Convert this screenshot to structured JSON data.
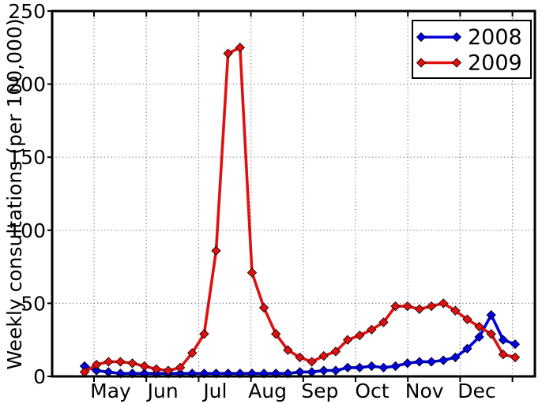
{
  "chart_data": {
    "type": "line",
    "title": "",
    "xlabel": "",
    "ylabel": "Weekly consultations (per 100,000)",
    "ylim": [
      0,
      250
    ],
    "yticks": [
      0,
      50,
      100,
      150,
      200,
      250
    ],
    "x_tick_labels": [
      "May",
      "Jun",
      "Jul",
      "Aug",
      "Sep",
      "Oct",
      "Nov",
      "Dec"
    ],
    "x_description": "37 weekly data points spanning late April to late December; vertical gridlines mark month boundaries May through January",
    "grid": {
      "visible": true,
      "style": "dotted",
      "color": "#7a7a7a"
    },
    "legend": {
      "position": "upper right",
      "entries": [
        "2008",
        "2009"
      ]
    },
    "series": [
      {
        "name": "2008",
        "color": "#0000e0",
        "marker": "diamond",
        "values": [
          7,
          4,
          3,
          2,
          2,
          2,
          2,
          2,
          2,
          2,
          2,
          2,
          2,
          2,
          2,
          2,
          2,
          2,
          3,
          3,
          4,
          4,
          6,
          6,
          7,
          6,
          7,
          9,
          10,
          10,
          11,
          13,
          19,
          27,
          42,
          25,
          22
        ]
      },
      {
        "name": "2009",
        "color": "#e01010",
        "marker": "diamond",
        "values": [
          3,
          8,
          10,
          10,
          9,
          7,
          5,
          4,
          6,
          16,
          29,
          86,
          221,
          225,
          71,
          47,
          29,
          18,
          13,
          10,
          14,
          17,
          25,
          28,
          32,
          37,
          48,
          48,
          46,
          48,
          50,
          45,
          39,
          34,
          29,
          15,
          13
        ]
      }
    ]
  }
}
